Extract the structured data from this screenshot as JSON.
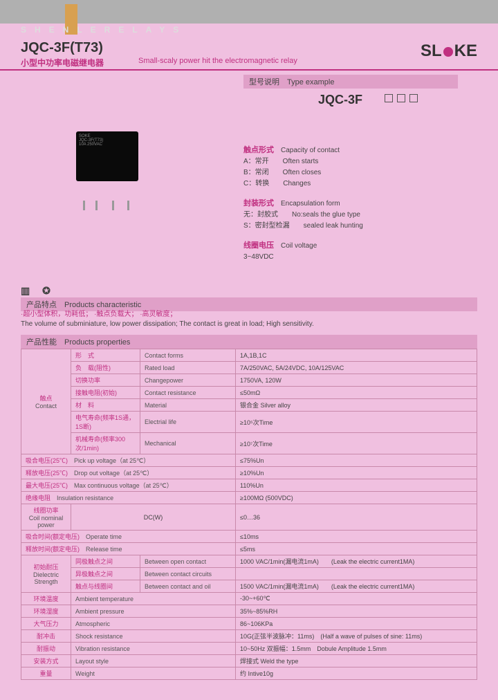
{
  "header": {
    "brand_letters": "SHENLERELAYS",
    "title": "JQC-3F(T73)",
    "subtitle_cn": "小型中功率电磁继电器",
    "subtitle_en": "Small-scaly power hit the electromagnetic relay",
    "logo_text_1": "SL",
    "logo_text_2": "KE"
  },
  "type_box": {
    "cn": "型号说明",
    "en": "Type example"
  },
  "model": "JQC-3F",
  "spec_blocks": [
    {
      "hdr_cn": "触点形式",
      "hdr_en": "Capacity of contact",
      "rows": [
        [
          "A：常开",
          "Often starts"
        ],
        [
          "B：常闭",
          "Often closes"
        ],
        [
          "C：转换",
          "Changes"
        ]
      ]
    },
    {
      "hdr_cn": "封装形式",
      "hdr_en": "Encapsulation form",
      "rows": [
        [
          "无：封胶式",
          "No:seals the glue type"
        ],
        [
          "S：密封型检漏",
          "sealed leak hunting"
        ]
      ]
    },
    {
      "hdr_cn": "线圈电压",
      "hdr_en": "Coil voltage",
      "rows": [
        [
          "3~48VDC",
          ""
        ]
      ]
    }
  ],
  "characteristic": {
    "label_cn": "产品特点",
    "label_en": "Products characteristic",
    "cn": "·超小型体积，功耗低；  ·触点负载大；  ·高灵敏度；",
    "en": "The volume of subminiature, low power dissipation; The contact is great in load; High sensitivity."
  },
  "properties_label": {
    "cn": "产品性能",
    "en": "Products properties"
  },
  "contact_group": {
    "cn": "触点",
    "en": "Contact",
    "rows": [
      {
        "c2cn": "形　式",
        "c3en": "Contact forms",
        "val": "1A,1B,1C"
      },
      {
        "c2cn": "负　载(阻性)",
        "c3en": "Rated load",
        "val": "7A/250VAC, 5A/24VDC, 10A/125VAC"
      },
      {
        "c2cn": "切换功率",
        "c3en": "Changepower",
        "val": "1750VA, 120W"
      },
      {
        "c2cn": "接触电阻(初始)",
        "c3en": "Contact resistance",
        "val": "≤50mΩ"
      },
      {
        "c2cn": "材　料",
        "c3en": "Material",
        "val": "银合金 Silver alloy"
      },
      {
        "c2cn": "电气寿命(频率1S通，1S断)",
        "c3en": "Electrial life",
        "val": "≥10⁵次Time"
      },
      {
        "c2cn": "机械寿命(频率300次/1min)",
        "c3en": "Mechanical",
        "val": "≥10⁷次Time"
      }
    ]
  },
  "simple_rows": [
    {
      "cn": "吸合电压(25℃)",
      "en": "Pick up voltage（at 25℃）",
      "val": "≤75%Un"
    },
    {
      "cn": "释放电压(25℃)",
      "en": "Drop out voltage（at 25℃）",
      "val": "≥10%Un"
    },
    {
      "cn": "最大电压(25℃)",
      "en": "Max continuous voltage（at 25℃）",
      "val": "110%Un"
    },
    {
      "cn": "绝缘电阻",
      "en": "Insulation resistance",
      "val": "≥100MΩ (500VDC)"
    }
  ],
  "coil_power": {
    "cn": "线圈功率",
    "en": "Coil nominal power",
    "hdr": "DC(W)",
    "val": "≤0…36"
  },
  "time_rows": [
    {
      "cn": "吸合时间(额定电压)",
      "en": "Operate time",
      "val": "≤10ms"
    },
    {
      "cn": "释放时间(额定电压)",
      "en": "Release time",
      "val": "≤5ms"
    }
  ],
  "dielectric": {
    "cn": "初始耐压",
    "en": "Dielectric Strength",
    "rows": [
      {
        "c2cn": "同极触点之间",
        "c3en": "Between open contact",
        "val": "1000 VAC/1min(漏电流1mA)　　(Leak the electric current1MA)"
      },
      {
        "c2cn": "异极触点之间",
        "c3en": "Between contact circuits",
        "val": ""
      },
      {
        "c2cn": "触点与线圈间",
        "c3en": "Between contact and oil",
        "val": "1500 VAC/1min(漏电流1mA)　　(Leak the electric current1MA)"
      }
    ]
  },
  "env_rows": [
    {
      "cn": "环境温度",
      "en": "Ambient temperature",
      "val": "-30~+60℃"
    },
    {
      "cn": "环境湿度",
      "en": "Ambient pressure",
      "val": "35%~85%RH"
    },
    {
      "cn": "大气压力",
      "en": "Atmospheric",
      "val": "86~106KPa"
    },
    {
      "cn": "耐冲击",
      "en": "Shock resistance",
      "val": "10G(正弦半波脉冲：11ms)　(Half a wave of pulses of sine: 11ms)"
    },
    {
      "cn": "耐振动",
      "en": "Vibration resistance",
      "val": "10~50Hz 双振幅：1.5mm　Dobule Amplitude 1.5mm"
    },
    {
      "cn": "安装方式",
      "en": "Layout style",
      "val": "焊接式 Weld the type"
    },
    {
      "cn": "重量",
      "en": "Weight",
      "val": "约 Intive10g"
    }
  ],
  "colors": {
    "bg": "#f0c0e0",
    "accent": "#c03080",
    "band": "#e0a0c8",
    "border": "#c888aa"
  }
}
